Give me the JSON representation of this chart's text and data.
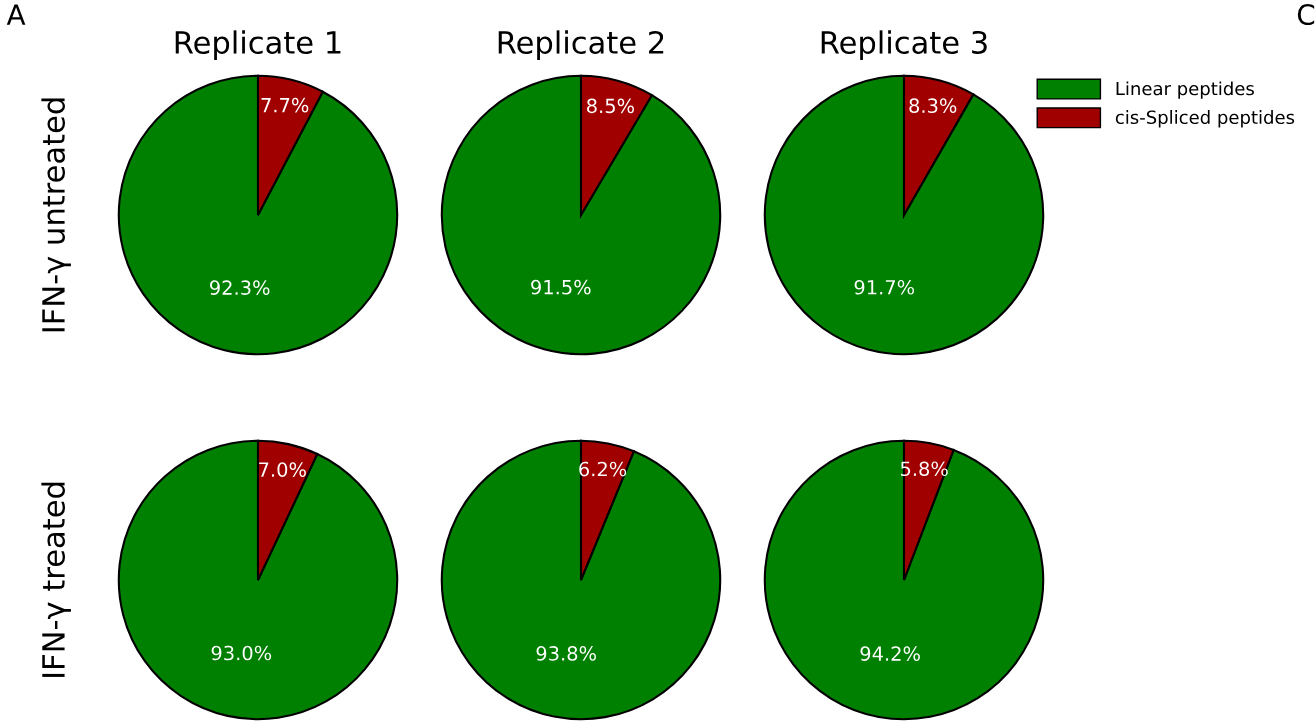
{
  "chart_data": [
    {
      "type": "pie",
      "title": "Replicate 1",
      "ylabel": "IFN-γ untreated",
      "annotations": [
        "A"
      ],
      "legend": "right",
      "categories": [
        "Linear peptides",
        "cis-Spliced peptides"
      ],
      "values": [
        92.3,
        7.7
      ],
      "colors": [
        "#008000",
        "#a00000"
      ],
      "value_labels": [
        "92.3%",
        "7.7%"
      ]
    },
    {
      "type": "pie",
      "title": "Replicate 2",
      "categories": [
        null,
        null
      ],
      "values": [
        91.5,
        8.5
      ],
      "colors": [
        "#008000",
        "#a00000"
      ],
      "value_labels": [
        "91.5%",
        "8.5%"
      ]
    },
    {
      "type": "pie",
      "title": "Replicate 3",
      "annotations": [
        "C"
      ],
      "categories": [
        null,
        null
      ],
      "values": [
        91.7,
        8.3
      ],
      "colors": [
        "#008000",
        "#a00000"
      ],
      "value_labels": [
        "91.7%",
        "8.3%"
      ]
    },
    {
      "type": "pie",
      "ylabel": "IFN-γ treated",
      "categories": [
        null,
        null
      ],
      "values": [
        93.0,
        7.0
      ],
      "colors": [
        "#008000",
        "#a00000"
      ],
      "value_labels": [
        "93.0%",
        "7.0%"
      ]
    },
    {
      "type": "pie",
      "categories": [
        null,
        null
      ],
      "values": [
        93.8,
        6.2
      ],
      "colors": [
        "#008000",
        "#a00000"
      ],
      "value_labels": [
        "93.8%",
        "6.2%"
      ]
    },
    {
      "type": "pie",
      "categories": [
        null,
        null
      ],
      "values": [
        94.2,
        5.8
      ],
      "colors": [
        "#008000",
        "#a00000"
      ],
      "value_labels": [
        "94.2%",
        "5.8%"
      ]
    }
  ]
}
